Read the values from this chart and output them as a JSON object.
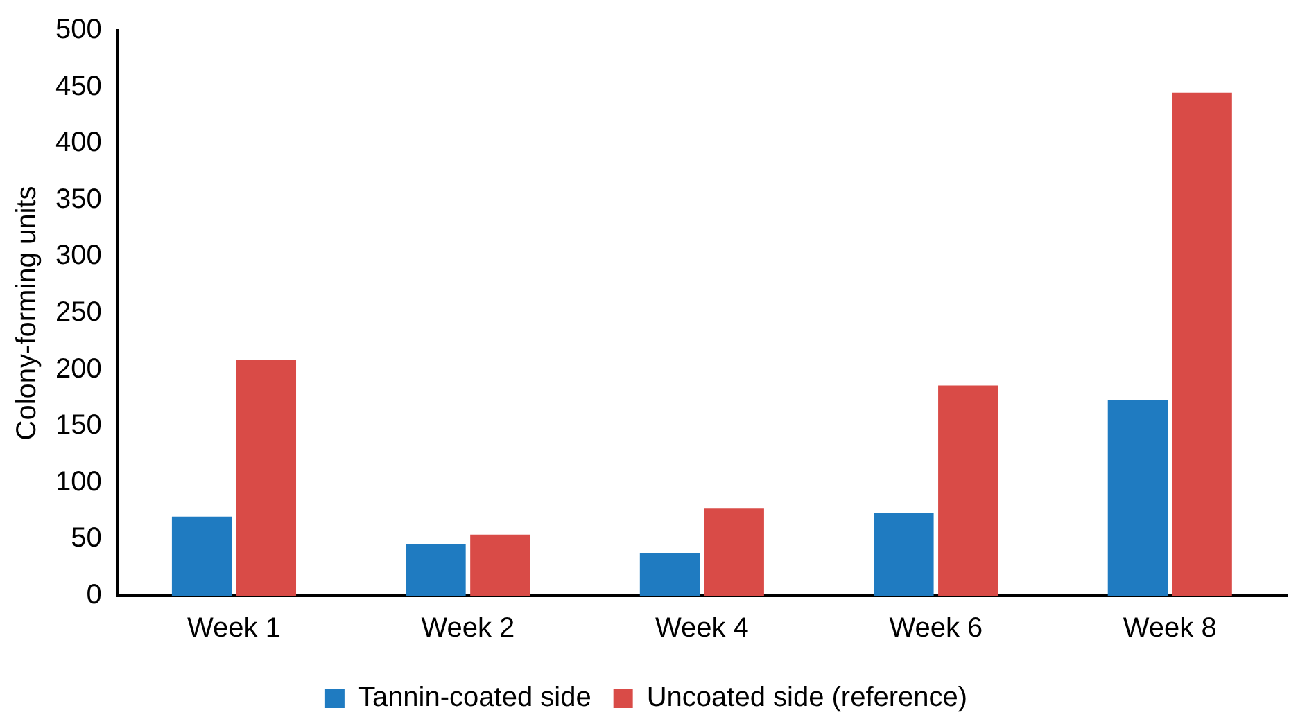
{
  "chart_data": {
    "type": "bar",
    "ylabel": "Colony-forming units",
    "categories": [
      "Week 1",
      "Week 2",
      "Week 4",
      "Week 6",
      "Week 8"
    ],
    "series": [
      {
        "name": "Tannin-coated side",
        "color": "#1f7bc1",
        "values": [
          70,
          46,
          38,
          73,
          173
        ]
      },
      {
        "name": "Uncoated side (reference)",
        "color": "#d94b47",
        "values": [
          209,
          54,
          77,
          186,
          445
        ]
      }
    ],
    "ylim": [
      0,
      500
    ],
    "yticks": [
      0,
      50,
      100,
      150,
      200,
      250,
      300,
      350,
      400,
      450,
      500
    ],
    "grid": false,
    "legend": "bottom"
  }
}
